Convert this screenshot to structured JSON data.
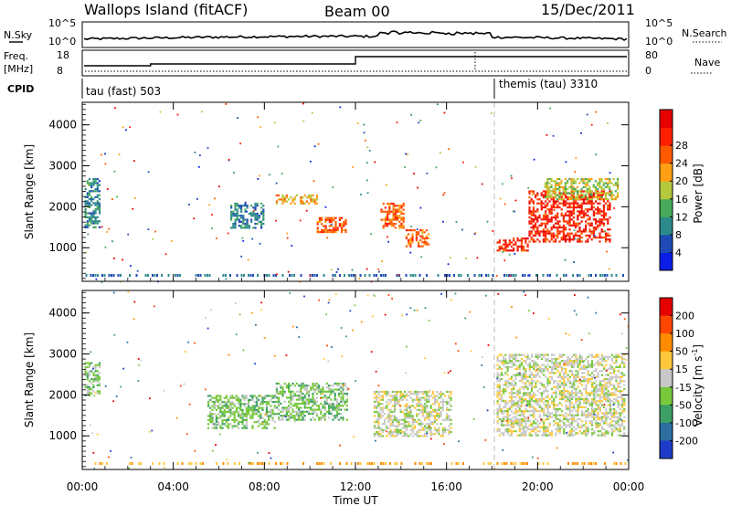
{
  "header": {
    "station": "Wallops Island (fitACF)",
    "beam": "Beam 00",
    "date": "15/Dec/2011"
  },
  "top_panels": {
    "nsky_label": "N.Sky",
    "nsky_ticks": [
      "10^5",
      "10^0"
    ],
    "nsearch_label": "N.Search",
    "nsearch_ticks": [
      "10^5",
      "10^0"
    ],
    "freq_label": "Freq.",
    "freq_unit": "[MHz]",
    "freq_ticks": [
      "18",
      "8"
    ],
    "nave_label": "Nave",
    "nave_ticks": [
      "80",
      "0"
    ],
    "cpid_label": "CPID",
    "cpid_segments": [
      {
        "name": "tau (fast) 503",
        "start_hour": 0
      },
      {
        "name": "themis (tau) 3310",
        "start_hour": 18
      }
    ]
  },
  "chart_data": [
    {
      "type": "heatmap",
      "ylabel": "Slant Range [km]",
      "xlabel": "Time UT",
      "x_tick_labels": [
        "00:00",
        "04:00",
        "08:00",
        "12:00",
        "16:00",
        "20:00",
        "00:00"
      ],
      "x_ticks_hours": [
        0,
        4,
        8,
        12,
        16,
        20,
        24
      ],
      "xlim": [
        0,
        24
      ],
      "y_ticks": [
        1000,
        2000,
        3000,
        4000
      ],
      "ylim": [
        180,
        4550
      ],
      "colorbar": {
        "label": "Power [dB]",
        "ticks": [
          "4",
          "8",
          "12",
          "16",
          "20",
          "24",
          "28"
        ],
        "colors": [
          "#0a1ee6",
          "#1e4ab4",
          "#2c8a8c",
          "#46aa5a",
          "#b4c83c",
          "#ffa014",
          "#ff5a00",
          "#ff1e00",
          "#e60000"
        ]
      },
      "regions": [
        {
          "t0": 8.5,
          "t1": 10.3,
          "r0": 2100,
          "r1": 2300,
          "level": 5
        },
        {
          "t0": 10.3,
          "t1": 11.6,
          "r0": 1400,
          "r1": 1750,
          "level": 6
        },
        {
          "t0": 13.1,
          "t1": 14.1,
          "r0": 1500,
          "r1": 2100,
          "level": 6
        },
        {
          "t0": 14.2,
          "t1": 15.2,
          "r0": 1050,
          "r1": 1450,
          "level": 6
        },
        {
          "t0": 18.2,
          "t1": 19.6,
          "r0": 950,
          "r1": 1250,
          "level": 7
        },
        {
          "t0": 19.6,
          "t1": 23.2,
          "r0": 1150,
          "r1": 2400,
          "level": 7
        },
        {
          "t0": 20.3,
          "t1": 23.5,
          "r0": 2200,
          "r1": 2700,
          "level": 4
        },
        {
          "t0": 0.1,
          "t1": 0.8,
          "r0": 1500,
          "r1": 2700,
          "level": 2
        },
        {
          "t0": 6.5,
          "t1": 8.0,
          "r0": 1500,
          "r1": 2100,
          "level": 2
        }
      ]
    },
    {
      "type": "heatmap",
      "ylabel": "Slant Range [km]",
      "xlabel": "Time UT",
      "x_tick_labels": [
        "00:00",
        "04:00",
        "08:00",
        "12:00",
        "16:00",
        "20:00",
        "00:00"
      ],
      "x_ticks_hours": [
        0,
        4,
        8,
        12,
        16,
        20,
        24
      ],
      "xlim": [
        0,
        24
      ],
      "y_ticks": [
        1000,
        2000,
        3000,
        4000
      ],
      "ylim": [
        180,
        4550
      ],
      "colorbar": {
        "label": "Velocity [m s",
        "label_sup": "-1",
        "label_end": "]",
        "ticks": [
          "200",
          "100",
          "50",
          "15",
          "-15",
          "-50",
          "-100",
          "-200"
        ],
        "colors": [
          "#1e3cc8",
          "#2c6ea0",
          "#3ca064",
          "#78c83c",
          "#c8c8c8",
          "#ffc83c",
          "#ff8c00",
          "#ff4600",
          "#e60000"
        ]
      },
      "regions": [
        {
          "t0": 8.5,
          "t1": 11.6,
          "r0": 1400,
          "r1": 2300,
          "level": 3
        },
        {
          "t0": 12.8,
          "t1": 16.2,
          "r0": 1000,
          "r1": 2100,
          "level": 4
        },
        {
          "t0": 18.2,
          "t1": 23.8,
          "r0": 1000,
          "r1": 3000,
          "level": 4
        },
        {
          "t0": 5.5,
          "t1": 8.5,
          "r0": 1200,
          "r1": 2000,
          "level": 3
        },
        {
          "t0": 0.1,
          "t1": 0.8,
          "r0": 2000,
          "r1": 2800,
          "level": 3
        }
      ]
    }
  ]
}
